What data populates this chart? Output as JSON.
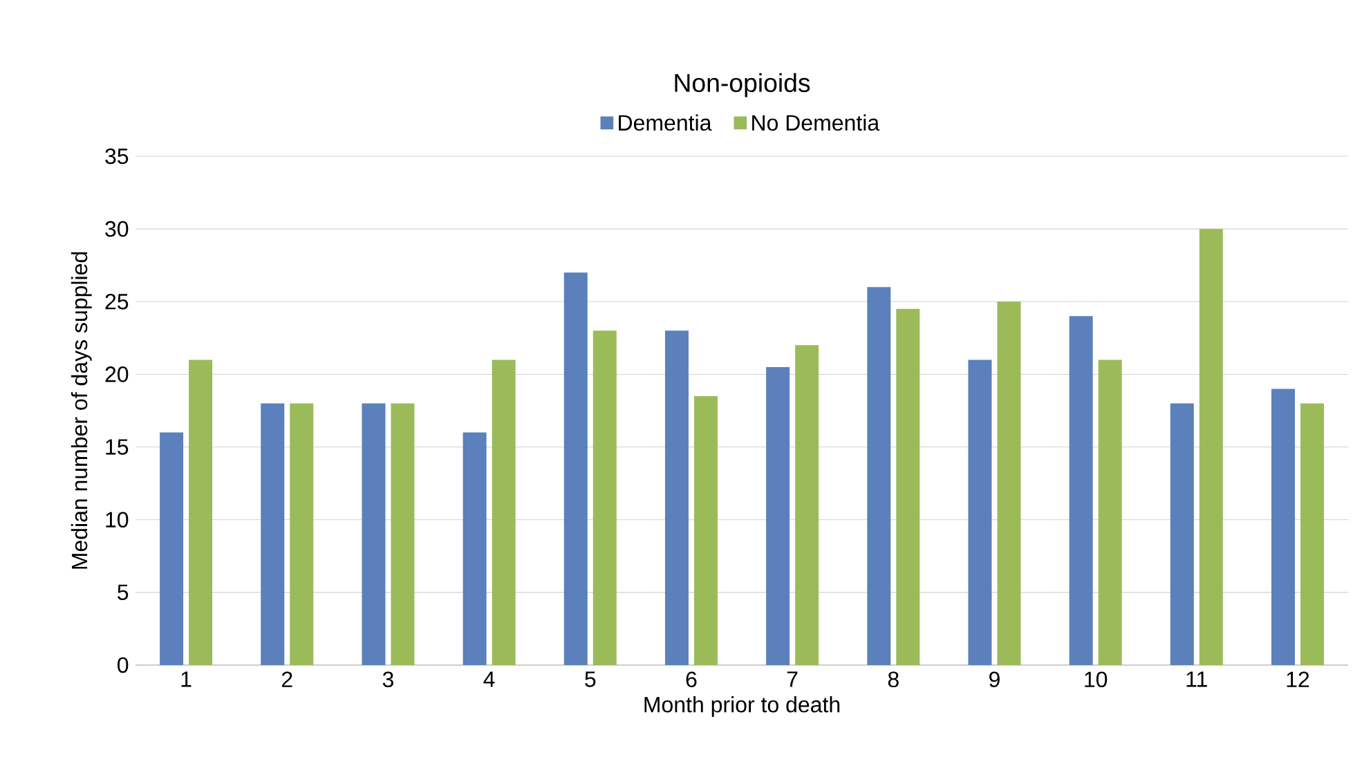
{
  "chart_data": {
    "type": "bar",
    "title": "Non-opioids",
    "xlabel": "Month prior to death",
    "ylabel": "Median number of days supplied",
    "categories": [
      "1",
      "2",
      "3",
      "4",
      "5",
      "6",
      "7",
      "8",
      "9",
      "10",
      "11",
      "12"
    ],
    "series": [
      {
        "name": "Dementia",
        "color": "#5b80bb",
        "values": [
          16,
          18,
          18,
          16,
          27,
          23,
          20.5,
          26,
          21,
          24,
          18,
          19
        ]
      },
      {
        "name": "No Dementia",
        "color": "#9bbb59",
        "values": [
          21,
          18,
          18,
          21,
          23,
          18.5,
          22,
          24.5,
          25,
          21,
          30,
          18
        ]
      }
    ],
    "ylim": [
      0,
      35
    ],
    "yticks": [
      0,
      5,
      10,
      15,
      20,
      25,
      30,
      35
    ],
    "grid": "y",
    "legend": "top"
  }
}
